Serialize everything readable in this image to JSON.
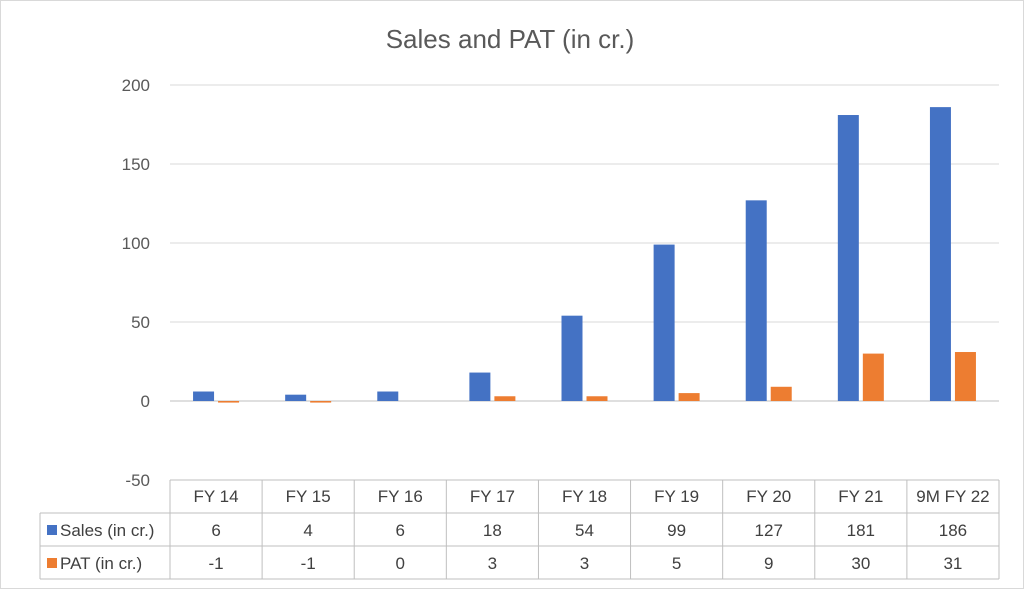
{
  "chart_data": {
    "type": "bar",
    "title": "Sales and PAT (in cr.)",
    "categories": [
      "FY 14",
      "FY 15",
      "FY 16",
      "FY 17",
      "FY 18",
      "FY 19",
      "FY 20",
      "FY 21",
      "9M FY 22"
    ],
    "series": [
      {
        "name": "Sales (in cr.)",
        "color": "#4472C4",
        "values": [
          6,
          4,
          6,
          18,
          54,
          99,
          127,
          181,
          186
        ]
      },
      {
        "name": "PAT (in cr.)",
        "color": "#ED7D31",
        "values": [
          -1,
          -1,
          0,
          3,
          3,
          5,
          9,
          30,
          31
        ]
      }
    ],
    "ylim": [
      -50,
      200
    ],
    "yticks": [
      -50,
      0,
      50,
      100,
      150,
      200
    ],
    "grid": true,
    "legend": "data-table",
    "data_table": true
  }
}
